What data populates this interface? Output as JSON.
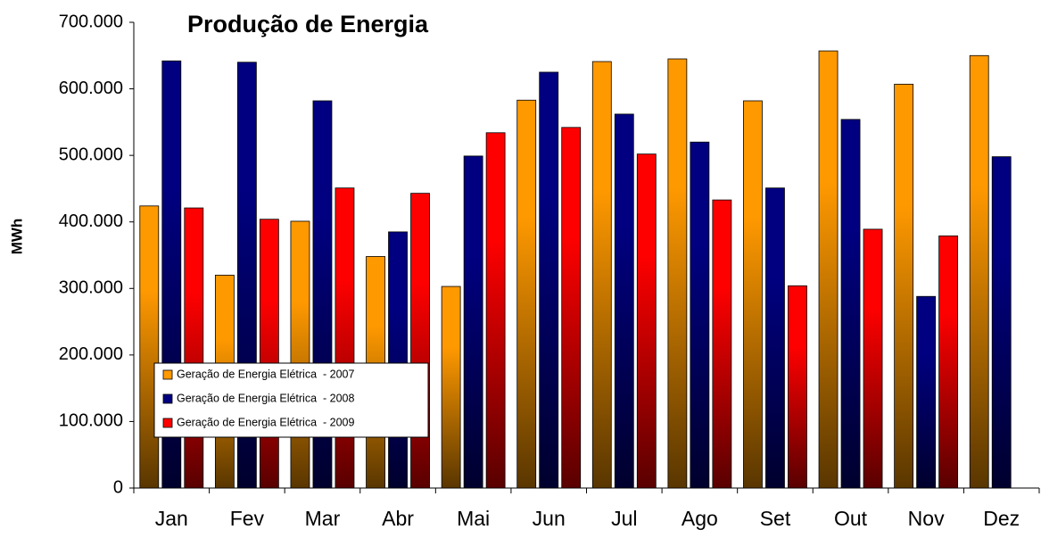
{
  "chart_data": {
    "type": "bar",
    "title": "Produção de Energia",
    "y_label": "MWh",
    "categories": [
      "Jan",
      "Fev",
      "Mar",
      "Abr",
      "Mai",
      "Jun",
      "Jul",
      "Ago",
      "Set",
      "Out",
      "Nov",
      "Dez"
    ],
    "series": [
      {
        "name": "Geração de Energia Elétrica  - 2007",
        "color": "#ff9900",
        "values": [
          424000,
          320000,
          401000,
          348000,
          303000,
          583000,
          641000,
          645000,
          582000,
          657000,
          607000,
          650000
        ]
      },
      {
        "name": "Geração de Energia Elétrica  - 2008",
        "color": "#000080",
        "values": [
          642000,
          640000,
          582000,
          385000,
          499000,
          625000,
          562000,
          520000,
          451000,
          554000,
          288000,
          498000
        ]
      },
      {
        "name": "Geração de Energia Elétrica  - 2009",
        "color": "#ff0000",
        "values": [
          421000,
          404000,
          451000,
          443000,
          534000,
          542000,
          502000,
          433000,
          304000,
          389000,
          379000,
          null
        ]
      }
    ],
    "ylim": [
      0,
      700000
    ],
    "yticks": [
      0,
      {
        "value": 100000,
        "label": "100.000"
      },
      {
        "value": 200000,
        "label": "200.000"
      },
      {
        "value": 300000,
        "label": "300.000"
      },
      {
        "value": 400000,
        "label": "400.000"
      },
      {
        "value": 500000,
        "label": "500.000"
      },
      {
        "value": 600000,
        "label": "600.000"
      },
      {
        "value": 700000,
        "label": "700.000"
      }
    ],
    "grid": false
  }
}
